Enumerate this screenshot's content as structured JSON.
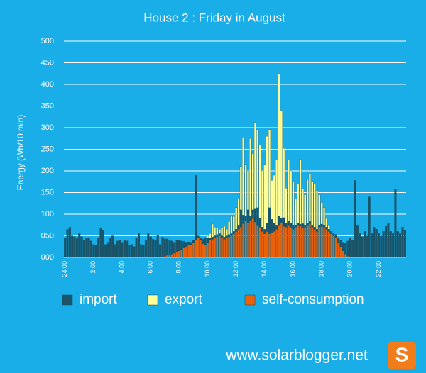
{
  "chart_data": {
    "type": "stacked_bar",
    "title": "House 2 : Friday  in August",
    "ylabel": "Energy (Wh/10 min)",
    "categories": [
      "24:00",
      null,
      null,
      null,
      null,
      null,
      null,
      null,
      null,
      null,
      null,
      null,
      "2:00",
      null,
      null,
      null,
      null,
      null,
      null,
      null,
      null,
      null,
      null,
      null,
      "4:00",
      null,
      null,
      null,
      null,
      null,
      null,
      null,
      null,
      null,
      null,
      null,
      "6:00",
      null,
      null,
      null,
      null,
      null,
      null,
      null,
      null,
      null,
      null,
      null,
      "8:00",
      null,
      null,
      null,
      null,
      null,
      null,
      null,
      null,
      null,
      null,
      null,
      "10:00",
      null,
      null,
      null,
      null,
      null,
      null,
      null,
      null,
      null,
      null,
      null,
      "12:00",
      null,
      null,
      null,
      null,
      null,
      null,
      null,
      null,
      null,
      null,
      null,
      "14:00",
      null,
      null,
      null,
      null,
      null,
      null,
      null,
      null,
      null,
      null,
      null,
      "16:00",
      null,
      null,
      null,
      null,
      null,
      null,
      null,
      null,
      null,
      null,
      null,
      "18:00",
      null,
      null,
      null,
      null,
      null,
      null,
      null,
      null,
      null,
      null,
      null,
      "20:00",
      null,
      null,
      null,
      null,
      null,
      null,
      null,
      null,
      null,
      null,
      null,
      "22:00",
      null,
      null,
      null,
      null,
      null,
      null,
      null,
      null,
      null,
      null,
      null
    ],
    "series": [
      {
        "name": "import",
        "color": "#1b5468",
        "values": [
          45,
          65,
          70,
          50,
          48,
          45,
          55,
          48,
          40,
          45,
          45,
          38,
          30,
          28,
          45,
          68,
          62,
          30,
          35,
          45,
          50,
          30,
          38,
          40,
          35,
          40,
          38,
          28,
          30,
          25,
          45,
          55,
          30,
          28,
          40,
          55,
          48,
          42,
          40,
          52,
          30,
          45,
          40,
          38,
          35,
          30,
          25,
          28,
          25,
          20,
          15,
          10,
          8,
          5,
          5,
          150,
          5,
          5,
          10,
          15,
          10,
          5,
          5,
          5,
          5,
          5,
          5,
          5,
          5,
          5,
          5,
          5,
          5,
          10,
          40,
          20,
          10,
          30,
          10,
          20,
          30,
          40,
          20,
          10,
          10,
          20,
          60,
          30,
          20,
          10,
          20,
          10,
          20,
          10,
          10,
          10,
          10,
          5,
          5,
          5,
          10,
          5,
          5,
          5,
          5,
          5,
          5,
          5,
          5,
          5,
          5,
          5,
          5,
          5,
          8,
          10,
          15,
          20,
          25,
          35,
          45,
          40,
          178,
          75,
          55,
          48,
          60,
          50,
          140,
          55,
          70,
          65,
          55,
          50,
          60,
          72,
          80,
          60,
          55,
          158,
          60,
          55,
          70,
          62
        ]
      },
      {
        "name": "export",
        "color": "#ffff99",
        "values": [
          0,
          0,
          0,
          0,
          0,
          0,
          0,
          0,
          0,
          0,
          0,
          0,
          0,
          0,
          0,
          0,
          0,
          0,
          0,
          0,
          0,
          0,
          0,
          0,
          0,
          0,
          0,
          0,
          0,
          0,
          0,
          0,
          0,
          0,
          0,
          0,
          0,
          0,
          0,
          0,
          0,
          0,
          0,
          0,
          0,
          0,
          0,
          0,
          0,
          0,
          0,
          0,
          0,
          0,
          0,
          0,
          0,
          0,
          0,
          0,
          5,
          10,
          30,
          20,
          15,
          10,
          20,
          25,
          15,
          30,
          40,
          35,
          50,
          60,
          100,
          180,
          120,
          90,
          180,
          130,
          200,
          180,
          170,
          130,
          150,
          200,
          180,
          90,
          110,
          150,
          330,
          250,
          160,
          80,
          140,
          120,
          100,
          60,
          90,
          150,
          80,
          70,
          100,
          110,
          100,
          100,
          90,
          70,
          50,
          40,
          20,
          10,
          0,
          0,
          0,
          0,
          0,
          0,
          0,
          0,
          0,
          0,
          0,
          0,
          0,
          0,
          0,
          0,
          0,
          0,
          0,
          0,
          0,
          0,
          0,
          0,
          0,
          0,
          0,
          0,
          0,
          0,
          0,
          0
        ]
      },
      {
        "name": "self-consumption",
        "color": "#e8620c",
        "values": [
          0,
          0,
          0,
          0,
          0,
          0,
          0,
          0,
          0,
          0,
          0,
          0,
          0,
          0,
          0,
          0,
          0,
          0,
          0,
          0,
          0,
          0,
          0,
          0,
          0,
          0,
          0,
          0,
          0,
          0,
          0,
          0,
          0,
          0,
          0,
          0,
          0,
          0,
          0,
          0,
          0,
          2,
          3,
          5,
          5,
          8,
          10,
          12,
          15,
          18,
          22,
          25,
          28,
          30,
          35,
          40,
          45,
          40,
          32,
          30,
          35,
          40,
          42,
          45,
          48,
          50,
          45,
          42,
          45,
          48,
          50,
          55,
          60,
          65,
          70,
          78,
          85,
          80,
          85,
          90,
          82,
          75,
          70,
          60,
          55,
          60,
          55,
          58,
          60,
          65,
          75,
          80,
          72,
          70,
          75,
          70,
          65,
          70,
          75,
          72,
          68,
          70,
          75,
          78,
          70,
          65,
          60,
          70,
          72,
          70,
          65,
          60,
          55,
          50,
          45,
          35,
          25,
          15,
          8,
          3,
          0,
          0,
          0,
          0,
          0,
          0,
          0,
          0,
          0,
          0,
          0,
          0,
          0,
          0,
          0,
          0,
          0,
          0,
          0,
          0,
          0,
          0,
          0,
          0
        ]
      }
    ],
    "ylim": [
      0,
      500
    ],
    "yticks": [
      {
        "value": 0,
        "label": "000"
      },
      {
        "value": 50,
        "label": "050"
      },
      100,
      150,
      200,
      250,
      300,
      350,
      400,
      450,
      500
    ],
    "grid": true
  },
  "footer": "www.solarblogger.net",
  "logo": "S"
}
